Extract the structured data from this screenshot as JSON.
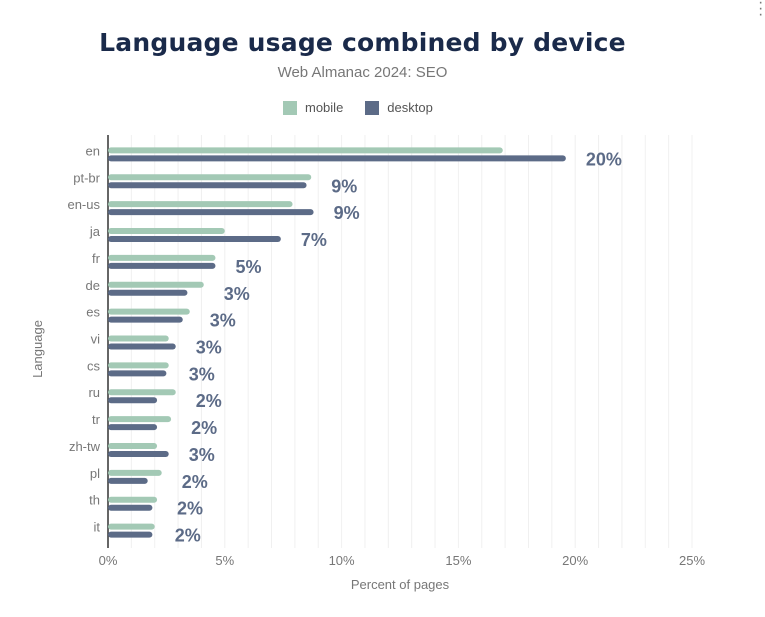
{
  "chart_data": {
    "type": "bar",
    "orientation": "horizontal",
    "title": "Language usage combined by device",
    "subtitle": "Web Almanac 2024: SEO",
    "xlabel": "Percent of pages",
    "ylabel": "Language",
    "xlim": [
      0,
      25
    ],
    "xticks": [
      "0%",
      "5%",
      "10%",
      "15%",
      "20%",
      "25%"
    ],
    "grid": true,
    "legend": "top",
    "categories": [
      "en",
      "pt-br",
      "en-us",
      "ja",
      "fr",
      "de",
      "es",
      "vi",
      "cs",
      "ru",
      "tr",
      "zh-tw",
      "pl",
      "th",
      "it"
    ],
    "series": [
      {
        "name": "mobile",
        "color": "#a3c9b5",
        "values": [
          16.9,
          8.7,
          7.9,
          5.0,
          4.6,
          4.1,
          3.5,
          2.6,
          2.6,
          2.9,
          2.7,
          2.1,
          2.3,
          2.1,
          2.0
        ]
      },
      {
        "name": "desktop",
        "color": "#5c6b87",
        "values": [
          19.6,
          8.5,
          8.8,
          7.4,
          4.6,
          3.4,
          3.2,
          2.9,
          2.5,
          2.1,
          2.1,
          2.6,
          1.7,
          1.9,
          1.9
        ]
      }
    ],
    "data_labels": [
      "20%",
      "9%",
      "9%",
      "7%",
      "5%",
      "3%",
      "3%",
      "3%",
      "3%",
      "2%",
      "2%",
      "3%",
      "2%",
      "2%",
      "2%"
    ]
  },
  "menu_icon": "kebab-menu-icon"
}
